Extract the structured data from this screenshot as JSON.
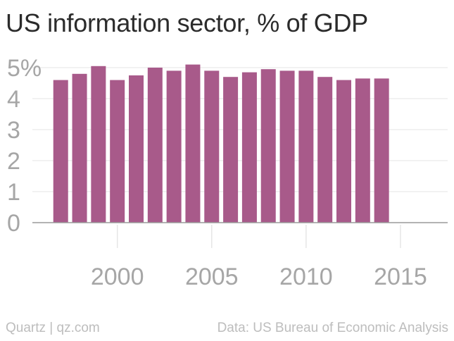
{
  "title": "US information sector, % of GDP",
  "footer": {
    "credit": "Quartz | qz.com",
    "source": "Data: US Bureau of Economic Analysis"
  },
  "colors": {
    "bar": "#a85a8a",
    "grid": "#e6e6e6",
    "axis": "#9a9a9a",
    "tick_label": "#a6a6a6"
  },
  "chart_data": {
    "type": "bar",
    "title": "US information sector, % of GDP",
    "xlabel": "",
    "ylabel": "",
    "x": [
      1997,
      1998,
      1999,
      2000,
      2001,
      2002,
      2003,
      2004,
      2005,
      2006,
      2007,
      2008,
      2009,
      2010,
      2011,
      2012,
      2013,
      2014
    ],
    "values": [
      4.6,
      4.8,
      5.05,
      4.6,
      4.75,
      5.0,
      4.9,
      5.1,
      4.9,
      4.7,
      4.85,
      4.95,
      4.9,
      4.9,
      4.7,
      4.6,
      4.65,
      4.65
    ],
    "xlim": [
      1995.5,
      2017.5
    ],
    "ylim": [
      0,
      5
    ],
    "y_ticks": [
      {
        "value": 0,
        "label": "0"
      },
      {
        "value": 1,
        "label": "1"
      },
      {
        "value": 2,
        "label": "2"
      },
      {
        "value": 3,
        "label": "3"
      },
      {
        "value": 4,
        "label": "4"
      },
      {
        "value": 5,
        "label": "5%"
      }
    ],
    "x_ticks": [
      {
        "value": 2000,
        "label": "2000"
      },
      {
        "value": 2005,
        "label": "2005"
      },
      {
        "value": 2010,
        "label": "2010"
      },
      {
        "value": 2015,
        "label": "2015"
      }
    ],
    "grid": true,
    "legend": "none"
  }
}
